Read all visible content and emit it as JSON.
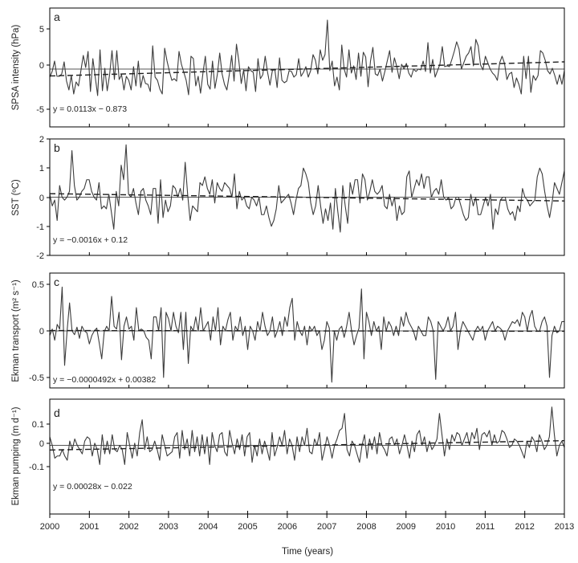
{
  "figure": {
    "xlabel": "Time (years)",
    "x_ticks": [
      "2000",
      "2001",
      "2002",
      "2003",
      "2004",
      "2005",
      "2006",
      "2007",
      "2008",
      "2009",
      "2010",
      "2011",
      "2012",
      "2013"
    ],
    "colors": {
      "series": "#3c3c3c",
      "trend": "#1e1e1e",
      "zero_line": "#555555",
      "frame": "#000000"
    }
  },
  "chart_data": [
    {
      "type": "line",
      "panel": "a",
      "ylabel": "SPSA intensity (hPa)",
      "yticks": [
        "-5",
        "0",
        "5"
      ],
      "ytick_values": [
        -5,
        0,
        5
      ],
      "ylim": [
        -6.8,
        6.3
      ],
      "xlim": [
        2000,
        2013
      ],
      "trend_equation": "y = 0.0113x − 0.873",
      "trend_endpoints": [
        -0.86,
        0.9
      ],
      "values": [
        -1.0,
        -0.3,
        1.0,
        -0.9,
        -0.9,
        -0.6,
        0.9,
        -1.5,
        -2.6,
        -0.8,
        -3.1,
        -1.6,
        -2.1,
        -0.2,
        1.7,
        0.2,
        2.2,
        -2.8,
        1.3,
        -1.0,
        -3.3,
        2.4,
        -2.7,
        0.1,
        -2.7,
        -0.7,
        2.3,
        -1.3,
        2.3,
        -1.3,
        -0.7,
        -2.6,
        -0.9,
        -1.4,
        -2.6,
        0.3,
        -2.1,
        1.0,
        -2.3,
        -0.8,
        -1.8,
        -1.9,
        -2.8,
        2.9,
        -1.0,
        -1.4,
        -2.5,
        -3.1,
        2.6,
        1.0,
        -0.3,
        -1.4,
        -1.2,
        -1.5,
        2.2,
        0.6,
        -0.4,
        -1.4,
        -3.2,
        1.6,
        1.3,
        -2.1,
        -0.9,
        -3.0,
        -0.5,
        1.6,
        -1.9,
        -2.5,
        1.0,
        -2.4,
        -0.7,
        2.0,
        -0.6,
        -1.9,
        -2.6,
        -0.7,
        1.7,
        -1.5,
        3.1,
        1.0,
        -1.8,
        -0.1,
        -2.7,
        0.3,
        -0.2,
        -0.4,
        -2.8,
        1.3,
        -1.2,
        -0.7,
        1.6,
        -0.4,
        -2.0,
        -0.2,
        0.0,
        -2.3,
        1.4,
        -1.4,
        -1.7,
        -1.5,
        -0.2,
        -0.3,
        -1.0,
        -0.7,
        1.3,
        -0.9,
        -0.4,
        0.3,
        -1.0,
        -0.2,
        1.8,
        1.1,
        -0.6,
        2.4,
        1.1,
        1.8,
        6.1,
        -0.2,
        1.0,
        -2.1,
        -1.0,
        -2.6,
        3.0,
        0.0,
        -1.0,
        2.4,
        -0.5,
        0.4,
        -1.3,
        2.0,
        -0.9,
        2.1,
        1.5,
        -2.2,
        1.0,
        2.7,
        -0.6,
        -0.8,
        0.0,
        -1.5,
        -0.3,
        1.0,
        2.3,
        -0.4,
        1.4,
        0.3,
        -1.2,
        0.6,
        0.0,
        0.7,
        -0.5,
        -1.0,
        0.0,
        -0.3,
        0.0,
        -0.1,
        1.0,
        -0.3,
        3.3,
        -0.5,
        1.2,
        -1.0,
        -0.2,
        0.6,
        2.8,
        0.3,
        0.4,
        0.3,
        1.2,
        2.2,
        3.4,
        2.5,
        0.0,
        0.8,
        1.6,
        2.0,
        2.8,
        0.4,
        3.7,
        2.9,
        0.5,
        -0.1,
        1.6,
        0.8,
        0.0,
        -0.5,
        -0.8,
        -1.4,
        0.8,
        1.6,
        0.7,
        -1.3,
        -0.6,
        -0.4,
        -2.3,
        -1.1,
        -1.9,
        -3.1,
        1.6,
        -1.2,
        1.6,
        -2.9,
        -0.8,
        -1.4,
        -0.8,
        2.3,
        2.0,
        1.1,
        -0.2,
        -0.6,
        0.1,
        -0.8,
        -1.9,
        -0.7,
        -1.9,
        -0.2
      ]
    },
    {
      "type": "line",
      "panel": "b",
      "ylabel": "SST (ºC)",
      "yticks": [
        "-2",
        "-1",
        "0",
        "1",
        "2"
      ],
      "ytick_values": [
        -2,
        -1,
        0,
        1,
        2
      ],
      "ylim": [
        -2,
        2
      ],
      "xlim": [
        2000,
        2013
      ],
      "trend_equation": "y = −0.0016x + 0.12",
      "trend_endpoints": [
        0.12,
        -0.13
      ],
      "values": [
        0.1,
        -0.3,
        -0.1,
        -0.8,
        0.4,
        0.0,
        -0.1,
        0.0,
        0.2,
        1.6,
        0.4,
        -0.1,
        0.0,
        0.2,
        0.3,
        0.6,
        0.6,
        0.2,
        0.0,
        -0.1,
        0.5,
        -0.4,
        -0.3,
        -0.4,
        0.1,
        -0.5,
        -1.1,
        0.2,
        -0.3,
        1.1,
        0.6,
        1.8,
        0.1,
        0.0,
        0.3,
        -0.2,
        -0.6,
        0.2,
        0.3,
        -0.1,
        -0.3,
        -0.6,
        0.3,
        0.3,
        -0.9,
        0.6,
        -0.7,
        -0.1,
        -0.5,
        -0.3,
        0.4,
        0.3,
        0.0,
        0.3,
        -0.1,
        1.2,
        0.1,
        -0.8,
        -0.3,
        -0.4,
        -0.5,
        0.5,
        0.4,
        0.7,
        0.3,
        0.1,
        0.6,
        -0.2,
        0.5,
        0.3,
        0.2,
        0.5,
        0.4,
        0.3,
        0.0,
        0.8,
        -0.4,
        0.2,
        -0.1,
        0.0,
        -0.3,
        -0.4,
        0.0,
        -0.1,
        -0.3,
        0.0,
        -0.6,
        -0.6,
        -0.3,
        -0.7,
        -1.0,
        -0.8,
        -0.4,
        0.4,
        -0.2,
        -0.1,
        0.0,
        0.1,
        -0.2,
        -0.6,
        -0.1,
        0.3,
        0.4,
        1.0,
        0.8,
        0.5,
        -0.2,
        -0.6,
        -0.3,
        0.4,
        -0.3,
        -0.9,
        -0.4,
        -0.8,
        -0.2,
        -1.1,
        0.3,
        -0.5,
        -1.2,
        0.4,
        -0.3,
        -0.9,
        0.5,
        0.1,
        0.6,
        0.6,
        -0.2,
        0.8,
        0.6,
        -0.1,
        0.2,
        0.6,
        0.2,
        0.1,
        0.2,
        0.4,
        -0.3,
        -0.4,
        0.1,
        -0.3,
        0.0,
        -0.8,
        -0.3,
        -0.6,
        -0.5,
        0.7,
        0.9,
        0.0,
        0.3,
        0.6,
        0.4,
        0.8,
        0.3,
        0.7,
        0.7,
        0.0,
        0.2,
        0.3,
        0.1,
        0.6,
        0.0,
        -0.1,
        0.0,
        -0.4,
        -0.3,
        0.0,
        0.0,
        -0.3,
        -0.6,
        -0.8,
        -0.7,
        0.1,
        -0.3,
        0.0,
        -0.6,
        -0.6,
        -0.3,
        0.0,
        -0.3,
        0.1,
        -1.1,
        -0.4,
        -0.6,
        -0.1,
        0.0,
        0.0,
        -0.4,
        -0.6,
        -0.5,
        -0.8,
        -0.3,
        -0.5,
        0.3,
        0.0,
        -0.1,
        -0.3,
        -0.2,
        -0.1,
        0.7,
        1.0,
        0.8,
        0.2,
        -0.3,
        -0.7,
        -0.2,
        0.5,
        0.3,
        0.1,
        0.5,
        0.9
      ]
    },
    {
      "type": "line",
      "panel": "c",
      "ylabel": "Ekman transport (m² s⁻¹)",
      "yticks": [
        "-0.5",
        "0",
        "0.5"
      ],
      "ytick_values": [
        -0.5,
        0,
        0.5
      ],
      "ylim": [
        -0.62,
        0.62
      ],
      "xlim": [
        2000,
        2013
      ],
      "trend_equation": "y = −0.0000492x + 0.00382",
      "trend_endpoints": [
        0.004,
        -0.004
      ],
      "values": [
        -0.05,
        0.02,
        -0.1,
        0.07,
        0.02,
        0.47,
        -0.37,
        0.0,
        0.3,
        0.0,
        -0.04,
        0.04,
        -0.08,
        0.05,
        0.0,
        -0.02,
        -0.14,
        -0.05,
        0.0,
        0.03,
        -0.13,
        -0.3,
        -0.01,
        0.05,
        0.0,
        0.37,
        0.05,
        0.02,
        0.2,
        -0.31,
        0.05,
        0.15,
        0.02,
        0.05,
        -0.1,
        0.25,
        0.0,
        0.02,
        0.0,
        -0.07,
        -0.1,
        -0.3,
        0.15,
        0.15,
        0.0,
        0.25,
        -0.5,
        0.2,
        0.13,
        0.0,
        0.2,
        0.05,
        -0.02,
        0.2,
        -0.2,
        0.2,
        -0.35,
        0.05,
        0.0,
        0.15,
        0.0,
        0.25,
        0.0,
        0.05,
        0.1,
        -0.1,
        0.15,
        0.0,
        0.25,
        -0.15,
        0.05,
        0.0,
        0.12,
        0.2,
        -0.1,
        0.05,
        0.0,
        0.15,
        -0.05,
        0.05,
        -0.2,
        0.05,
        0.0,
        -0.1,
        0.1,
        0.0,
        0.2,
        0.05,
        -0.05,
        0.0,
        0.15,
        -0.07,
        0.0,
        0.1,
        -0.05,
        0.15,
        0.05,
        0.25,
        0.35,
        -0.1,
        0.1,
        0.0,
        -0.05,
        0.05,
        -0.15,
        0.05,
        0.0,
        0.05,
        -0.05,
        0.0,
        -0.2,
        -0.1,
        0.1,
        0.03,
        -0.55,
        0.0,
        -0.1,
        0.02,
        0.05,
        -0.07,
        0.05,
        0.2,
        0.0,
        -0.15,
        -0.05,
        0.03,
        0.45,
        -0.3,
        0.2,
        0.1,
        -0.05,
        0.1,
        0.0,
        0.05,
        -0.2,
        0.15,
        0.0,
        0.1,
        0.05,
        -0.05,
        0.05,
        -0.05,
        0.15,
        0.05,
        0.2,
        0.1,
        0.05,
        0.0,
        -0.1,
        0.05,
        0.0,
        -0.05,
        -0.05,
        0.15,
        0.1,
        0.0,
        -0.52,
        0.1,
        0.05,
        0.0,
        0.05,
        0.15,
        0.0,
        0.05,
        0.2,
        -0.2,
        0.0,
        0.1,
        0.05,
        0.0,
        -0.05,
        -0.1,
        0.0,
        0.05,
        0.0,
        0.05,
        -0.1,
        0.0,
        0.05,
        0.1,
        0.0,
        0.05,
        0.03,
        0.0,
        -0.1,
        0.0,
        0.05,
        0.1,
        0.08,
        0.12,
        0.05,
        0.2,
        0.15,
        0.0,
        0.15,
        0.22,
        0.05,
        0.0,
        0.0,
        0.1,
        0.15,
        0.05,
        -0.5,
        -0.05,
        0.05,
        -0.02,
        0.0,
        0.1,
        0.1
      ]
    },
    {
      "type": "line",
      "panel": "d",
      "ylabel": "Ekman pumping (m d⁻¹)",
      "yticks": [
        "-0.1",
        "0",
        "0.1"
      ],
      "ytick_values": [
        -0.1,
        0,
        0.1
      ],
      "ylim": [
        -0.155,
        0.185
      ],
      "xlim": [
        2000,
        2013
      ],
      "trend_equation": "y = 0.00028x − 0.022",
      "trend_endpoints": [
        -0.022,
        0.022
      ],
      "values": [
        0.04,
        0.0,
        -0.06,
        -0.05,
        -0.05,
        -0.02,
        -0.05,
        -0.07,
        0.02,
        -0.02,
        0.03,
        0.0,
        -0.02,
        -0.04,
        0.02,
        0.04,
        0.03,
        -0.05,
        0.01,
        -0.02,
        -0.09,
        0.05,
        -0.04,
        0.02,
        -0.04,
        0.05,
        -0.02,
        -0.03,
        0.0,
        -0.02,
        -0.09,
        0.06,
        0.0,
        -0.06,
        0.01,
        -0.05,
        0.06,
        0.12,
        -0.02,
        0.04,
        -0.03,
        -0.02,
        0.02,
        -0.02,
        -0.07,
        0.05,
        0.0,
        -0.05,
        -0.04,
        -0.03,
        0.04,
        0.06,
        -0.06,
        0.07,
        -0.02,
        0.03,
        -0.05,
        0.07,
        -0.03,
        0.04,
        -0.05,
        0.05,
        -0.04,
        0.04,
        -0.09,
        0.06,
        0.0,
        -0.03,
        0.05,
        0.06,
        -0.03,
        -0.05,
        0.07,
        0.01,
        -0.04,
        0.03,
        -0.02,
        0.05,
        -0.05,
        0.04,
        0.06,
        -0.08,
        0.0,
        -0.05,
        0.03,
        -0.04,
        0.02,
        -0.02,
        -0.07,
        0.06,
        -0.05,
        -0.01,
        0.04,
        0.0,
        0.07,
        -0.04,
        0.03,
        0.0,
        -0.07,
        0.04,
        -0.03,
        0.04,
        0.0,
        0.08,
        -0.03,
        -0.04,
        0.03,
        0.0,
        0.06,
        -0.07,
        -0.02,
        0.04,
        0.0,
        -0.06,
        0.0,
        0.03,
        0.07,
        0.08,
        0.15,
        -0.02,
        -0.05,
        0.02,
        0.0,
        -0.04,
        -0.08,
        0.0,
        0.05,
        -0.06,
        0.03,
        -0.02,
        0.04,
        -0.04,
        0.06,
        0.0,
        -0.02,
        -0.05,
        0.03,
        0.04,
        0.0,
        0.03,
        -0.04,
        0.0,
        0.05,
        0.0,
        -0.06,
        0.02,
        -0.03,
        0.05,
        0.07,
        0.0,
        0.04,
        -0.03,
        0.02,
        -0.02,
        0.0,
        0.03,
        0.15,
        0.05,
        -0.05,
        0.03,
        -0.02,
        0.05,
        0.02,
        0.06,
        0.05,
        0.0,
        0.03,
        0.06,
        0.0,
        0.06,
        0.03,
        0.08,
        -0.02,
        0.05,
        0.06,
        0.04,
        0.07,
        0.0,
        0.05,
        0.01,
        0.02,
        0.07,
        0.06,
        0.03,
        -0.01,
        0.0,
        0.03,
        0.02,
        0.0,
        -0.03,
        -0.06,
        0.02,
        -0.01,
        0.04,
        0.02,
        -0.03,
        0.05,
        0.02,
        -0.02,
        0.0,
        0.04,
        0.18,
        0.05,
        -0.05,
        0.0,
        0.02,
        -0.01
      ]
    }
  ]
}
